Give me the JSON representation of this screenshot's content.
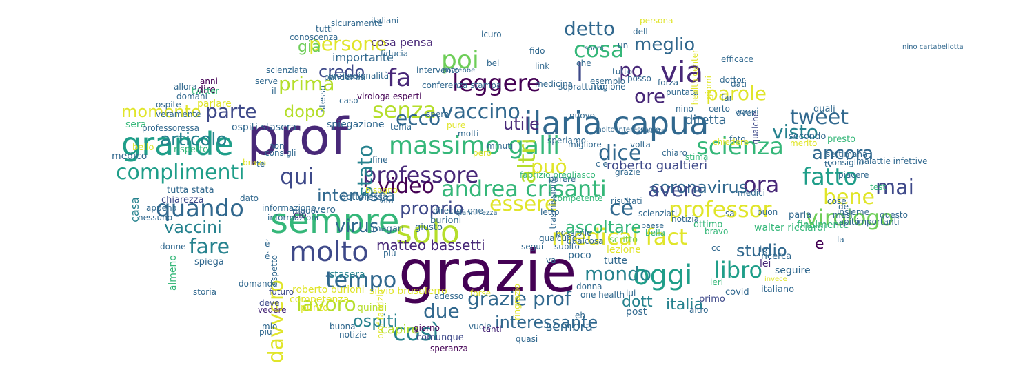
{
  "palette": [
    "#440154",
    "#482878",
    "#3e4989",
    "#31688e",
    "#26828e",
    "#1f9e89",
    "#35b779",
    "#6ece58",
    "#b5de2b",
    "#e0e52a",
    "#fde725"
  ],
  "words": [
    {
      "text": "grazie",
      "color": "#440154"
    },
    {
      "text": "prof",
      "color": "#482878"
    },
    {
      "text": "sempre",
      "color": "#35b779"
    },
    {
      "text": "grande",
      "color": "#1f9e89"
    },
    {
      "text": "ilaria capua",
      "color": "#31688e"
    },
    {
      "text": "solo",
      "color": "#b5de2b"
    },
    {
      "text": "molto",
      "color": "#3e4989"
    },
    {
      "text": "oggi",
      "color": "#1f9e89"
    },
    {
      "text": "massimo galli",
      "color": "#35b779"
    },
    {
      "text": "andrea crisanti",
      "color": "#35b779"
    },
    {
      "text": "medical fact",
      "color": "#e0e52a"
    },
    {
      "text": "professor",
      "color": "#e0e52a"
    },
    {
      "text": "via",
      "color": "#482878"
    },
    {
      "text": "cosa",
      "color": "#35b779"
    },
    {
      "text": "scienza",
      "color": "#35b779"
    },
    {
      "text": "virologo",
      "color": "#6ece58"
    },
    {
      "text": "fatto",
      "color": "#1f9e89"
    },
    {
      "text": "leggere",
      "color": "#440154"
    },
    {
      "text": "professore",
      "color": "#482878"
    },
    {
      "text": "tempo",
      "color": "#31688e"
    },
    {
      "text": "fa",
      "color": "#482878"
    },
    {
      "text": "poi",
      "color": "#6ece58"
    },
    {
      "text": "senza",
      "color": "#b5de2b"
    },
    {
      "text": "vaccino",
      "color": "#31688e"
    },
    {
      "text": "detto",
      "color": "#31688e"
    },
    {
      "text": "altri",
      "color": "#b5de2b"
    },
    {
      "text": "stato",
      "color": "#26828e"
    },
    {
      "text": "video",
      "color": "#440154"
    },
    {
      "text": "quando",
      "color": "#31688e"
    },
    {
      "text": "complimenti",
      "color": "#1f9e89"
    },
    {
      "text": "qui",
      "color": "#3e4989"
    },
    {
      "text": "parte",
      "color": "#3e4989"
    },
    {
      "text": "momento",
      "color": "#e0e52a"
    },
    {
      "text": "prima",
      "color": "#b5de2b"
    },
    {
      "text": "persone",
      "color": "#e0e52a"
    },
    {
      "text": "già",
      "color": "#6ece58"
    },
    {
      "text": "articolo",
      "color": "#26828e"
    },
    {
      "text": "dopo",
      "color": "#b5de2b"
    },
    {
      "text": "credo",
      "color": "#3e4989"
    },
    {
      "text": "ecco",
      "color": "#31688e"
    },
    {
      "text": "può",
      "color": "#e0e52a"
    },
    {
      "text": "dice",
      "color": "#31688e"
    },
    {
      "text": "essere",
      "color": "#e0e52a"
    },
    {
      "text": "cè",
      "color": "#31688e"
    },
    {
      "text": "ora",
      "color": "#482878"
    },
    {
      "text": "mondo",
      "color": "#26828e"
    },
    {
      "text": "libro",
      "color": "#1f9e89"
    },
    {
      "text": "lavoro",
      "color": "#b5de2b"
    },
    {
      "text": "davvero",
      "color": "#e0e52a"
    },
    {
      "text": "fare",
      "color": "#26828e"
    },
    {
      "text": "vaccini",
      "color": "#26828e"
    },
    {
      "text": "due",
      "color": "#31688e"
    },
    {
      "text": "così",
      "color": "#26828e"
    },
    {
      "text": "grazie prof",
      "color": "#31688e"
    },
    {
      "text": "interessante",
      "color": "#31688e"
    },
    {
      "text": "ospiti",
      "color": "#26828e"
    },
    {
      "text": "matteo bassetti",
      "color": "#482878"
    },
    {
      "text": "ascoltare",
      "color": "#35b779"
    },
    {
      "text": "proprio",
      "color": "#3e4989"
    },
    {
      "text": "virus",
      "color": "#31688e"
    },
    {
      "text": "intervista",
      "color": "#31688e"
    },
    {
      "text": "coronavirus",
      "color": "#31688e"
    },
    {
      "text": "ancora",
      "color": "#31688e"
    },
    {
      "text": "visto",
      "color": "#26828e"
    },
    {
      "text": "tweet",
      "color": "#31688e"
    },
    {
      "text": "mai",
      "color": "#3e4989"
    },
    {
      "text": "bene",
      "color": "#e0e52a"
    },
    {
      "text": "parole",
      "color": "#e0e52a"
    },
    {
      "text": "ore",
      "color": "#482878"
    },
    {
      "text": "po",
      "color": "#482878"
    },
    {
      "text": "meglio",
      "color": "#31688e"
    },
    {
      "text": "l",
      "color": "#3e4989"
    },
    {
      "text": "utile",
      "color": "#482878"
    },
    {
      "text": "dott",
      "color": "#26828e"
    },
    {
      "text": "italia",
      "color": "#26828e"
    },
    {
      "text": "avere",
      "color": "#3e4989"
    },
    {
      "text": "roberto gualtieri",
      "color": "#3e4989"
    },
    {
      "text": "studio",
      "color": "#31688e"
    },
    {
      "text": "e",
      "color": "#440154"
    },
    {
      "text": "diretta",
      "color": "#31688e"
    },
    {
      "text": "capire",
      "color": "#b5de2b"
    },
    {
      "text": "sembra",
      "color": "#31688e"
    },
    {
      "text": "quindi",
      "color": "#b5de2b"
    },
    {
      "text": "seguire",
      "color": "#31688e"
    },
    {
      "text": "lei",
      "color": "#482878"
    },
    {
      "text": "stasera",
      "color": "#26828e"
    },
    {
      "text": "poco",
      "color": "#31688e"
    },
    {
      "text": "post",
      "color": "#31688e"
    },
    {
      "text": "casa",
      "color": "#26828e"
    },
    {
      "text": "vero",
      "color": "#31688e"
    },
    {
      "text": "ciò",
      "color": "#482878"
    },
    {
      "text": "magari",
      "color": "#31688e"
    },
    {
      "text": "giusto",
      "color": "#31688e"
    },
    {
      "text": "burioni",
      "color": "#31688e"
    },
    {
      "text": "cosa pensa",
      "color": "#482878"
    },
    {
      "text": "importante",
      "color": "#31688e"
    },
    {
      "text": "conoscenza",
      "color": "#31688e"
    },
    {
      "text": "tutti",
      "color": "#31688e"
    },
    {
      "text": "dire",
      "color": "#440154"
    },
    {
      "text": "anni",
      "color": "#440154"
    },
    {
      "text": "parlare",
      "color": "#e0e52a"
    },
    {
      "text": "domani",
      "color": "#31688e"
    },
    {
      "text": "sera",
      "color": "#35b779"
    },
    {
      "text": "medico",
      "color": "#31688e"
    },
    {
      "text": "bello",
      "color": "#e0e52a"
    },
    {
      "text": "professoressa",
      "color": "#31688e"
    },
    {
      "text": "ospiti stasera",
      "color": "#31688e"
    },
    {
      "text": "spiegazione",
      "color": "#31688e"
    },
    {
      "text": "rispetto",
      "color": "#35b779"
    },
    {
      "text": "consigli",
      "color": "#31688e"
    },
    {
      "text": "tutta stata",
      "color": "#31688e"
    },
    {
      "text": "chiarezza",
      "color": "#3e4989"
    },
    {
      "text": "appena",
      "color": "#31688e"
    },
    {
      "text": "nessuno",
      "color": "#31688e"
    },
    {
      "text": "informazione",
      "color": "#31688e"
    },
    {
      "text": "informazioni",
      "color": "#31688e"
    },
    {
      "text": "modo",
      "color": "#31688e"
    },
    {
      "text": "dottoressa",
      "color": "#31688e"
    },
    {
      "text": "bisogno",
      "color": "#e0e52a"
    },
    {
      "text": "vita",
      "color": "#31688e"
    },
    {
      "text": "più",
      "color": "#31688e"
    },
    {
      "text": "silvio brusaferro",
      "color": "#e0e52a"
    },
    {
      "text": "roberto burioni",
      "color": "#e0e52a"
    },
    {
      "text": "competenza",
      "color": "#e0e52a"
    },
    {
      "text": "punto",
      "color": "#e0e52a"
    },
    {
      "text": "futuro",
      "color": "#3e4989"
    },
    {
      "text": "deve",
      "color": "#3e4989"
    },
    {
      "text": "vedere",
      "color": "#482878"
    },
    {
      "text": "storia",
      "color": "#31688e"
    },
    {
      "text": "almeno",
      "color": "#35b779"
    },
    {
      "text": "spiega",
      "color": "#31688e"
    },
    {
      "text": "donne",
      "color": "#31688e"
    },
    {
      "text": "giorno",
      "color": "#440154"
    },
    {
      "text": "vuole",
      "color": "#31688e"
    },
    {
      "text": "buona",
      "color": "#31688e"
    },
    {
      "text": "notizie",
      "color": "#31688e"
    },
    {
      "text": "comunque",
      "color": "#3e4989"
    },
    {
      "text": "speranza",
      "color": "#440154"
    },
    {
      "text": "tanti",
      "color": "#482878"
    },
    {
      "text": "quasi",
      "color": "#31688e"
    },
    {
      "text": "donna",
      "color": "#31688e"
    },
    {
      "text": "one health",
      "color": "#31688e"
    },
    {
      "text": "tutte",
      "color": "#31688e"
    },
    {
      "text": "lezione",
      "color": "#e0e52a"
    },
    {
      "text": "scritto",
      "color": "#6ece58"
    },
    {
      "text": "ieri",
      "color": "#35b779"
    },
    {
      "text": "covid",
      "color": "#31688e"
    },
    {
      "text": "primo",
      "color": "#3e4989"
    },
    {
      "text": "italiano",
      "color": "#31688e"
    },
    {
      "text": "ricerca",
      "color": "#31688e"
    },
    {
      "text": "walter ricciardi",
      "color": "#35b779"
    },
    {
      "text": "finalmente",
      "color": "#35b779"
    },
    {
      "text": "parla",
      "color": "#31688e"
    },
    {
      "text": "notizia",
      "color": "#31688e"
    },
    {
      "text": "ottimo",
      "color": "#35b779"
    },
    {
      "text": "bravo",
      "color": "#35b779"
    },
    {
      "text": "bella",
      "color": "#35b779"
    },
    {
      "text": "paese",
      "color": "#31688e"
    },
    {
      "text": "scienziati",
      "color": "#31688e"
    },
    {
      "text": "risultati",
      "color": "#31688e"
    },
    {
      "text": "letto",
      "color": "#31688e"
    },
    {
      "text": "possibile",
      "color": "#31688e"
    },
    {
      "text": "qualcosa",
      "color": "#31688e"
    },
    {
      "text": "qualcuno",
      "color": "#31688e"
    },
    {
      "text": "subito",
      "color": "#31688e"
    },
    {
      "text": "parere",
      "color": "#31688e"
    },
    {
      "text": "fabrizio pregliasco",
      "color": "#35b779"
    },
    {
      "text": "grazie",
      "color": "#31688e"
    },
    {
      "text": "volta",
      "color": "#31688e"
    },
    {
      "text": "chiaro",
      "color": "#31688e"
    },
    {
      "text": "stima",
      "color": "#35b779"
    },
    {
      "text": "quali",
      "color": "#31688e"
    },
    {
      "text": "qualche",
      "color": "#3e4989"
    },
    {
      "text": "secondo",
      "color": "#31688e"
    },
    {
      "text": "merito",
      "color": "#e0e52a"
    },
    {
      "text": "foto",
      "color": "#31688e"
    },
    {
      "text": "presto",
      "color": "#35b779"
    },
    {
      "text": "settimana",
      "color": "#31688e"
    },
    {
      "text": "consiglio",
      "color": "#31688e"
    },
    {
      "text": "piacere",
      "color": "#31688e"
    },
    {
      "text": "cose",
      "color": "#31688e"
    },
    {
      "text": "insieme",
      "color": "#31688e"
    },
    {
      "text": "capito",
      "color": "#31688e"
    },
    {
      "text": "importanti",
      "color": "#31688e"
    },
    {
      "text": "questo",
      "color": "#31688e"
    },
    {
      "text": "test",
      "color": "#35b779"
    },
    {
      "text": "medici",
      "color": "#31688e"
    },
    {
      "text": "malattie infettive",
      "color": "#31688e"
    },
    {
      "text": "vorrei",
      "color": "#31688e"
    },
    {
      "text": "giorni",
      "color": "#e0e52a"
    },
    {
      "text": "esempio",
      "color": "#31688e"
    },
    {
      "text": "ragione",
      "color": "#31688e"
    },
    {
      "text": "nuovo",
      "color": "#31688e"
    },
    {
      "text": "migliore",
      "color": "#31688e"
    },
    {
      "text": "speriamo",
      "color": "#31688e"
    },
    {
      "text": "minuti",
      "color": "#31688e"
    },
    {
      "text": "però",
      "color": "#e0e52a"
    },
    {
      "text": "molti",
      "color": "#31688e"
    },
    {
      "text": "pure",
      "color": "#e0e52a"
    },
    {
      "text": "spero",
      "color": "#31688e"
    },
    {
      "text": "caso",
      "color": "#31688e"
    },
    {
      "text": "virologa esperti",
      "color": "#440154"
    },
    {
      "text": "conferenza stampa",
      "color": "#31688e"
    },
    {
      "text": "intervento",
      "color": "#31688e"
    },
    {
      "text": "pandemia",
      "color": "#31688e"
    },
    {
      "text": "fiducia",
      "color": "#31688e"
    },
    {
      "text": "sicuramente",
      "color": "#31688e"
    },
    {
      "text": "italiani",
      "color": "#31688e"
    },
    {
      "text": "link",
      "color": "#31688e"
    },
    {
      "text": "medicina",
      "color": "#31688e"
    },
    {
      "text": "soprattutto",
      "color": "#31688e"
    },
    {
      "text": "tutto",
      "color": "#31688e"
    },
    {
      "text": "posso",
      "color": "#31688e"
    },
    {
      "text": "forza",
      "color": "#31688e"
    },
    {
      "text": "puntata",
      "color": "#31688e"
    },
    {
      "text": "dati",
      "color": "#31688e"
    },
    {
      "text": "certo",
      "color": "#31688e"
    },
    {
      "text": "ospite",
      "color": "#31688e"
    },
    {
      "text": "veramente",
      "color": "#31688e"
    },
    {
      "text": "allora",
      "color": "#31688e"
    },
    {
      "text": "serve",
      "color": "#31688e"
    },
    {
      "text": "stesso",
      "color": "#31688e"
    },
    {
      "text": "il",
      "color": "#31688e"
    },
    {
      "text": "twitter",
      "color": "#35b779"
    },
    {
      "text": "dato",
      "color": "#31688e"
    },
    {
      "text": "domanda",
      "color": "#31688e"
    },
    {
      "text": "aspetto",
      "color": "#31688e"
    },
    {
      "text": "prof fabrizio",
      "color": "#e0e52a"
    },
    {
      "text": "adesso",
      "color": "#31688e"
    },
    {
      "text": "forse",
      "color": "#e0e52a"
    },
    {
      "text": "ringrazio",
      "color": "#e0e52a"
    },
    {
      "text": "segui",
      "color": "#31688e"
    },
    {
      "text": "tema",
      "color": "#31688e"
    },
    {
      "text": "fine",
      "color": "#31688e"
    },
    {
      "text": "bel",
      "color": "#31688e"
    },
    {
      "text": "fido",
      "color": "#31688e"
    },
    {
      "text": "che",
      "color": "#31688e"
    },
    {
      "text": "un",
      "color": "#31688e"
    },
    {
      "text": "dell",
      "color": "#31688e"
    },
    {
      "text": "persona",
      "color": "#e0e52a"
    },
    {
      "text": "health center",
      "color": "#e0e52a"
    },
    {
      "text": "efficace",
      "color": "#31688e"
    },
    {
      "text": "aver",
      "color": "#31688e"
    },
    {
      "text": "far",
      "color": "#31688e"
    },
    {
      "text": "dottor",
      "color": "#31688e"
    },
    {
      "text": "brava",
      "color": "#e0e52a"
    },
    {
      "text": "scienziata",
      "color": "#31688e"
    },
    {
      "text": "professionalità",
      "color": "#31688e"
    },
    {
      "text": "competente",
      "color": "#35b779"
    },
    {
      "text": "chiedere",
      "color": "#e0e52a"
    },
    {
      "text": "sa",
      "color": "#31688e"
    },
    {
      "text": "tv",
      "color": "#31688e"
    },
    {
      "text": "de",
      "color": "#31688e"
    },
    {
      "text": "mesi",
      "color": "#31688e"
    },
    {
      "text": "cc",
      "color": "#31688e"
    },
    {
      "text": "la",
      "color": "#31688e"
    },
    {
      "text": "io",
      "color": "#31688e"
    },
    {
      "text": "è",
      "color": "#31688e"
    },
    {
      "text": "é",
      "color": "#31688e"
    },
    {
      "text": "non",
      "color": "#31688e"
    },
    {
      "text": "te",
      "color": "#31688e"
    },
    {
      "text": "c è",
      "color": "#31688e"
    },
    {
      "text": "va",
      "color": "#31688e"
    },
    {
      "text": "eh",
      "color": "#31688e"
    },
    {
      "text": "nino",
      "color": "#31688e"
    },
    {
      "text": "icuro",
      "color": "#31688e"
    },
    {
      "text": "altro",
      "color": "#31688e"
    },
    {
      "text": "buon",
      "color": "#31688e"
    },
    {
      "text": "lui",
      "color": "#31688e"
    },
    {
      "text": "trasmissione",
      "color": "#31688e"
    },
    {
      "text": "mio",
      "color": "#31688e"
    },
    {
      "text": "più",
      "color": "#31688e"
    },
    {
      "text": "director one",
      "color": "#31688e"
    },
    {
      "text": "nino cartabellotta",
      "color": "#31688e"
    },
    {
      "text": "gianni rezza",
      "color": "#31688e"
    },
    {
      "text": "molto interessante",
      "color": "#31688e"
    },
    {
      "text": "invece",
      "color": "#e0e52a"
    },
    {
      "text": "durante",
      "color": "#31688e"
    },
    {
      "text": "dovrebbe",
      "color": "#31688e"
    },
    {
      "text": "sperò",
      "color": "#31688e"
    }
  ]
}
